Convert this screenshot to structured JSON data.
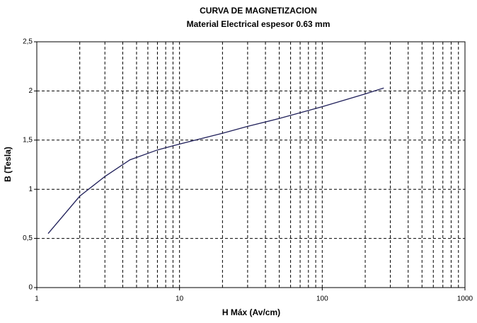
{
  "chart_data": {
    "type": "line",
    "title": "CURVA DE MAGNETIZACION",
    "subtitle": "Material Electrical espesor 0.63 mm",
    "x_label": "H Máx (Av/cm)",
    "y_label": "B (Tesla)",
    "x": [
      1.2,
      2,
      3,
      4.5,
      7,
      10,
      20,
      30,
      50,
      100,
      200,
      270
    ],
    "series": [
      {
        "name": "B",
        "color": "#20205a",
        "values": [
          0.55,
          0.93,
          1.13,
          1.3,
          1.4,
          1.46,
          1.57,
          1.64,
          1.72,
          1.84,
          1.97,
          2.03
        ]
      }
    ],
    "xscale": "log",
    "xlim": [
      1,
      1000
    ],
    "xticks": [
      1,
      10,
      100,
      1000
    ],
    "xminor_ticks": [
      2,
      3,
      4,
      5,
      6,
      7,
      8,
      9,
      20,
      30,
      40,
      50,
      60,
      70,
      80,
      90,
      200,
      300,
      400,
      500,
      600,
      700,
      800,
      900
    ],
    "ylim": [
      0,
      2.5
    ],
    "yticks": [
      0,
      {
        "value": 0.5,
        "label": "0,5"
      },
      1,
      {
        "value": 1.5,
        "label": "1,5"
      },
      2,
      {
        "value": 2.5,
        "label": "2,5"
      }
    ],
    "grid": true
  }
}
